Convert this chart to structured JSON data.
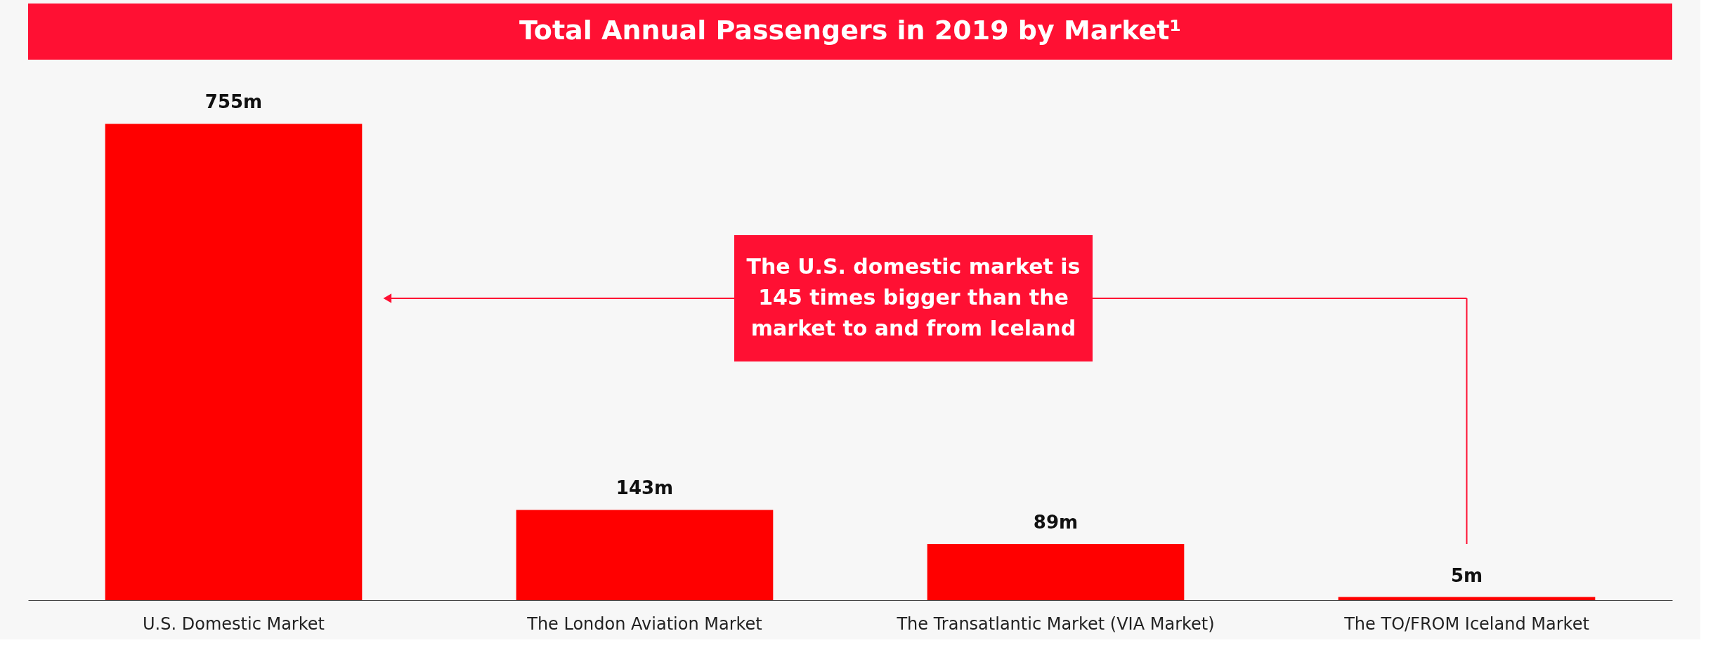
{
  "chart_data": {
    "type": "bar",
    "title": "Total Annual Passengers in 2019 by Market¹",
    "categories": [
      "U.S. Domestic Market",
      "The London Aviation Market",
      "The Transatlantic Market (VIA Market)",
      "The TO/FROM Iceland Market"
    ],
    "values": [
      755,
      143,
      89,
      5
    ],
    "value_labels": [
      "755m",
      "143m",
      "89m",
      "5m"
    ],
    "color": "#ff0000",
    "annotations": [
      "The U.S. domestic market is 145 times bigger than the market to and from Iceland"
    ],
    "grid": false
  }
}
